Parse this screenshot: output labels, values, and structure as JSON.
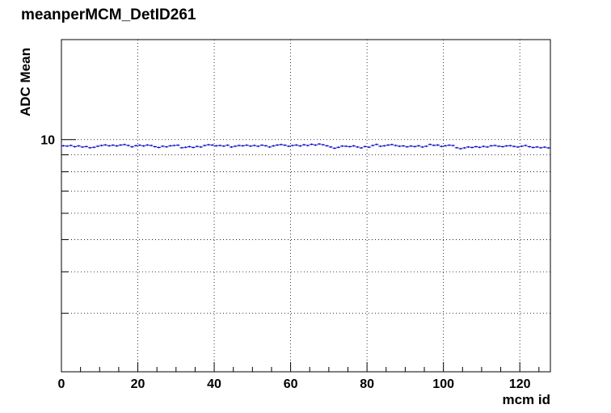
{
  "chart_data": {
    "type": "scatter",
    "title": "meanperMCM_DetID261",
    "xlabel": "mcm id",
    "ylabel": "ADC Mean",
    "xlim": [
      0,
      128
    ],
    "ylim": [
      2,
      20
    ],
    "yscale": "log",
    "x_major_ticks": [
      0,
      20,
      40,
      60,
      80,
      100,
      120
    ],
    "y_labeled_ticks": [
      10
    ],
    "grid": true,
    "bin_width": 1,
    "series": [
      {
        "color": "#0000cc",
        "x": [
          0.5,
          1.5,
          2.5,
          3.5,
          4.5,
          5.5,
          6.5,
          7.5,
          8.5,
          9.5,
          10.5,
          11.5,
          12.5,
          13.5,
          14.5,
          15.5,
          16.5,
          17.5,
          18.5,
          19.5,
          20.5,
          21.5,
          22.5,
          23.5,
          24.5,
          25.5,
          26.5,
          27.5,
          28.5,
          29.5,
          30.5,
          31.5,
          32.5,
          33.5,
          34.5,
          35.5,
          36.5,
          37.5,
          38.5,
          39.5,
          40.5,
          41.5,
          42.5,
          43.5,
          44.5,
          45.5,
          46.5,
          47.5,
          48.5,
          49.5,
          50.5,
          51.5,
          52.5,
          53.5,
          54.5,
          55.5,
          56.5,
          57.5,
          58.5,
          59.5,
          60.5,
          61.5,
          62.5,
          63.5,
          64.5,
          65.5,
          66.5,
          67.5,
          68.5,
          69.5,
          70.5,
          71.5,
          72.5,
          73.5,
          74.5,
          75.5,
          76.5,
          77.5,
          78.5,
          79.5,
          80.5,
          81.5,
          82.5,
          83.5,
          84.5,
          85.5,
          86.5,
          87.5,
          88.5,
          89.5,
          90.5,
          91.5,
          92.5,
          93.5,
          94.5,
          95.5,
          96.5,
          97.5,
          98.5,
          99.5,
          100.5,
          101.5,
          102.5,
          103.5,
          104.5,
          105.5,
          106.5,
          107.5,
          108.5,
          109.5,
          110.5,
          111.5,
          112.5,
          113.5,
          114.5,
          115.5,
          116.5,
          117.5,
          118.5,
          119.5,
          120.5,
          121.5,
          122.5,
          123.5,
          124.5,
          125.5,
          126.5,
          127.5
        ],
        "values": [
          9.58,
          9.56,
          9.6,
          9.52,
          9.57,
          9.5,
          9.53,
          9.45,
          9.48,
          9.55,
          9.6,
          9.64,
          9.58,
          9.62,
          9.57,
          9.63,
          9.66,
          9.6,
          9.51,
          9.59,
          9.62,
          9.57,
          9.63,
          9.6,
          9.52,
          9.47,
          9.55,
          9.51,
          9.58,
          9.6,
          9.62,
          9.45,
          9.48,
          9.52,
          9.47,
          9.54,
          9.5,
          9.6,
          9.65,
          9.63,
          9.58,
          9.6,
          9.56,
          9.62,
          9.5,
          9.55,
          9.6,
          9.58,
          9.62,
          9.56,
          9.6,
          9.55,
          9.62,
          9.58,
          9.5,
          9.57,
          9.63,
          9.66,
          9.62,
          9.55,
          9.6,
          9.63,
          9.57,
          9.65,
          9.6,
          9.68,
          9.63,
          9.7,
          9.65,
          9.58,
          9.5,
          9.42,
          9.48,
          9.56,
          9.55,
          9.52,
          9.57,
          9.5,
          9.44,
          9.53,
          9.49,
          9.6,
          9.67,
          9.55,
          9.58,
          9.63,
          9.66,
          9.6,
          9.55,
          9.57,
          9.51,
          9.56,
          9.53,
          9.58,
          9.5,
          9.55,
          9.67,
          9.61,
          9.63,
          9.54,
          9.58,
          9.62,
          9.6,
          9.45,
          9.39,
          9.44,
          9.5,
          9.47,
          9.52,
          9.48,
          9.54,
          9.5,
          9.58,
          9.6,
          9.55,
          9.52,
          9.57,
          9.59,
          9.54,
          9.5,
          9.55,
          9.6,
          9.52,
          9.47,
          9.5,
          9.45,
          9.49,
          9.44
        ],
        "errors": [
          0.06,
          0.06,
          0.06,
          0.06,
          0.06,
          0.06,
          0.06,
          0.06,
          0.06,
          0.06,
          0.06,
          0.06,
          0.06,
          0.06,
          0.06,
          0.06,
          0.06,
          0.06,
          0.06,
          0.06,
          0.06,
          0.06,
          0.06,
          0.06,
          0.06,
          0.06,
          0.06,
          0.06,
          0.06,
          0.06,
          0.06,
          0.06,
          0.06,
          0.06,
          0.06,
          0.06,
          0.06,
          0.06,
          0.06,
          0.06,
          0.06,
          0.06,
          0.06,
          0.06,
          0.06,
          0.06,
          0.06,
          0.06,
          0.06,
          0.06,
          0.06,
          0.06,
          0.06,
          0.06,
          0.06,
          0.06,
          0.06,
          0.06,
          0.06,
          0.06,
          0.06,
          0.06,
          0.06,
          0.06,
          0.06,
          0.06,
          0.06,
          0.06,
          0.06,
          0.06,
          0.06,
          0.06,
          0.06,
          0.06,
          0.06,
          0.06,
          0.06,
          0.06,
          0.06,
          0.06,
          0.06,
          0.06,
          0.06,
          0.06,
          0.06,
          0.06,
          0.06,
          0.06,
          0.06,
          0.06,
          0.06,
          0.06,
          0.06,
          0.06,
          0.06,
          0.06,
          0.06,
          0.06,
          0.06,
          0.06,
          0.06,
          0.06,
          0.06,
          0.06,
          0.06,
          0.06,
          0.06,
          0.06,
          0.06,
          0.06,
          0.06,
          0.06,
          0.06,
          0.06,
          0.06,
          0.06,
          0.06,
          0.06,
          0.06,
          0.06,
          0.06,
          0.06,
          0.06,
          0.06,
          0.06,
          0.06,
          0.06,
          0.06
        ]
      }
    ]
  }
}
